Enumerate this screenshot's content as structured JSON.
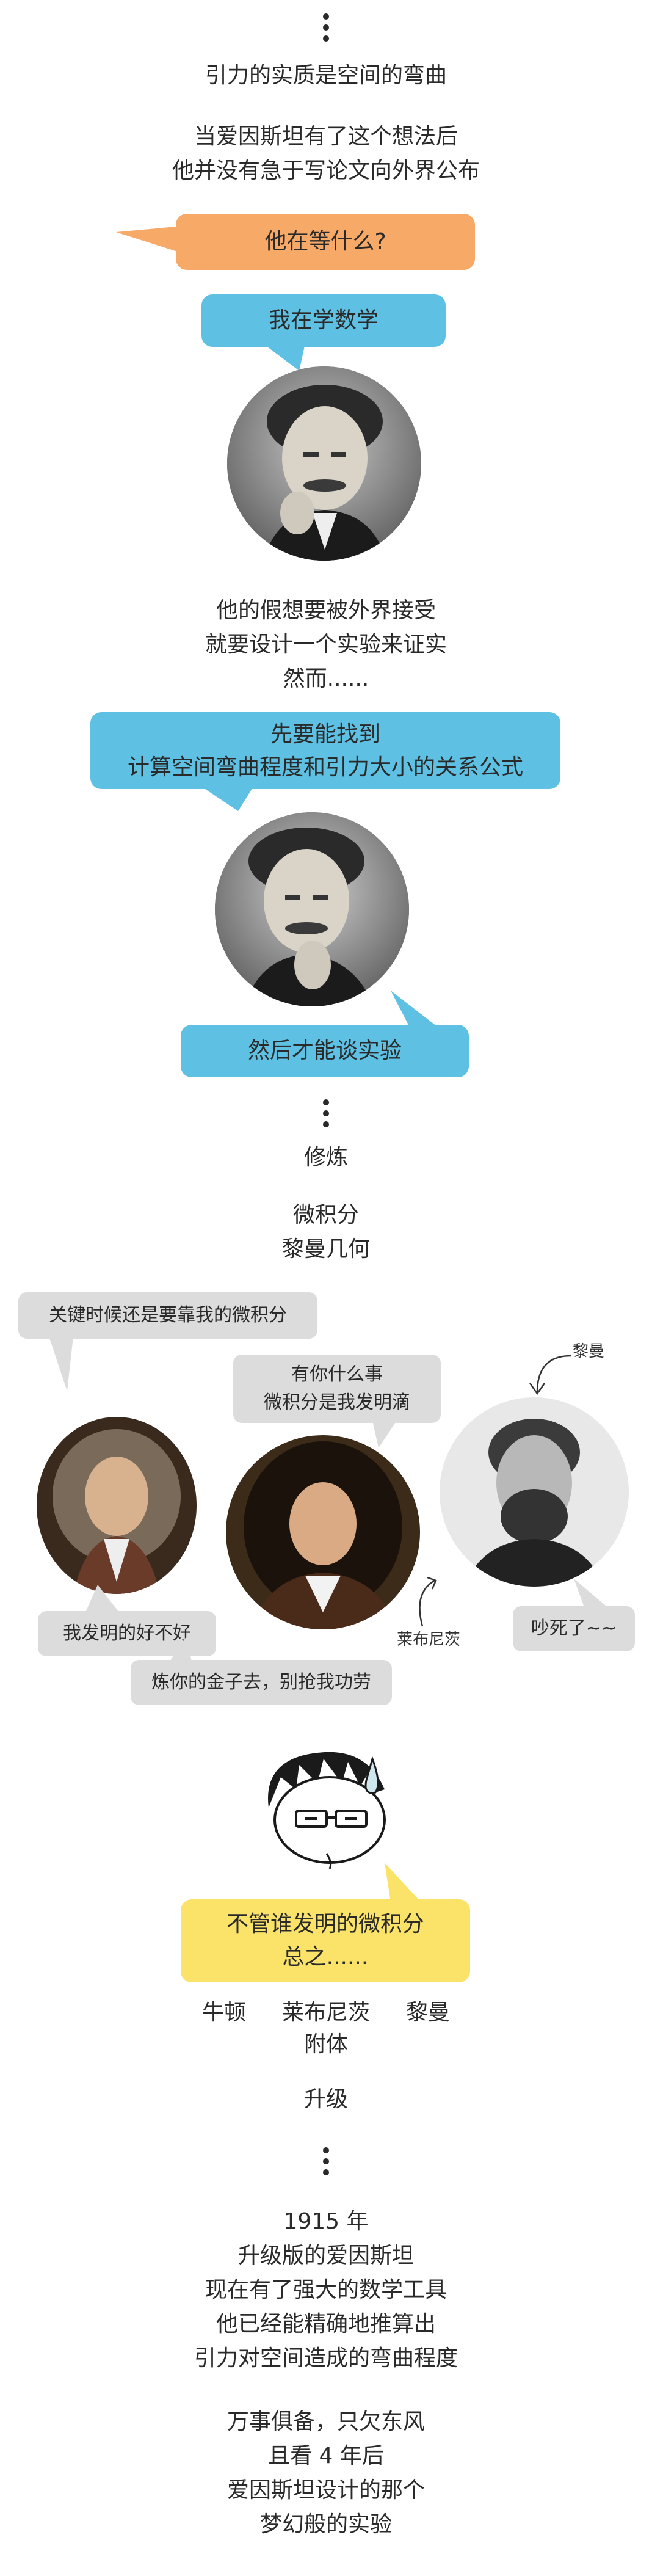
{
  "intro": {
    "line1": "引力的实质是空间的弯曲",
    "line2": "当爱因斯坦有了这个想法后",
    "line3": "他并没有急于写论文向外界公布"
  },
  "bubbles": {
    "waiting": "他在等什么?",
    "learning": "我在学数学",
    "find_line1": "先要能找到",
    "find_line2": "计算空间弯曲程度和引力大小的关系公式",
    "then": "然后才能谈实验"
  },
  "hypothesis": {
    "line1": "他的假想要被外界接受",
    "line2": "就要设计一个实验来证实",
    "line3": "然而......"
  },
  "study": {
    "title": "修炼",
    "item1": "微积分",
    "item2": "黎曼几何"
  },
  "debate": {
    "newton_top": "关键时候还是要靠我的微积分",
    "leibniz_top_1": "有你什么事",
    "leibniz_top_2": "微积分是我发明滴",
    "riemann_label": "黎曼",
    "newton_bottom": "我发明的好不好",
    "leibniz_label": "莱布尼茨",
    "riemann_bottom": "吵死了~~",
    "leibniz_bottom": "炼你的金子去，别抢我功劳"
  },
  "conclusion": {
    "bubble_line1": "不管谁发明的微积分",
    "bubble_line2": "总之......",
    "names": [
      "牛顿",
      "莱布尼茨",
      "黎曼"
    ],
    "attached": "附体",
    "upgrade": "升级"
  },
  "ending": {
    "l1": "1915 年",
    "l2": "升级版的爱因斯坦",
    "l3": "现在有了强大的数学工具",
    "l4": "他已经能精确地推算出",
    "l5": "引力对空间造成的弯曲程度",
    "l6": "万事俱备，只欠东风",
    "l7": "且看 4 年后",
    "l8": "爱因斯坦设计的那个",
    "l9": "梦幻般的实验"
  },
  "colors": {
    "orange": "#f7a968",
    "blue": "#5ec0e2",
    "yellow": "#fbe36a",
    "gray": "#dcdcdc"
  }
}
